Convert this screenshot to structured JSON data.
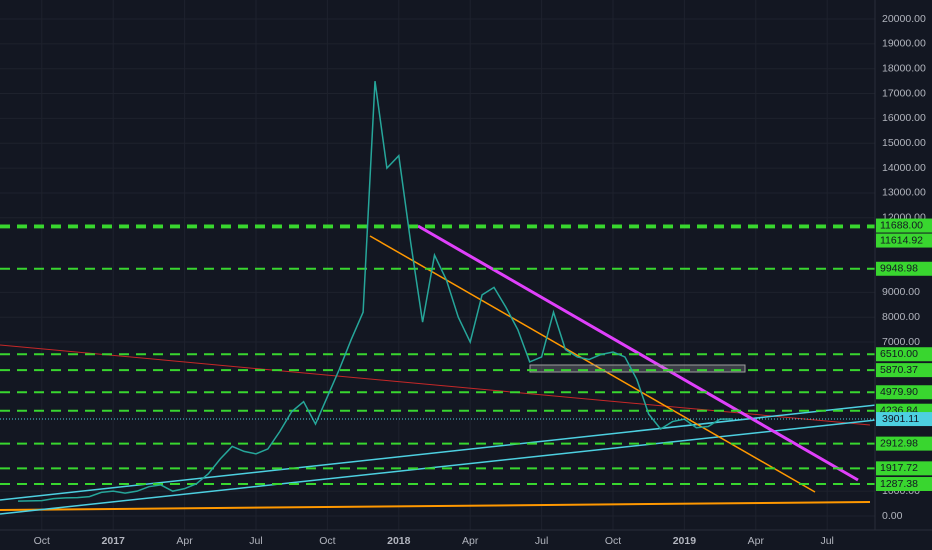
{
  "chart_data": {
    "type": "line",
    "categories": [
      null,
      null,
      "Oct",
      null,
      null,
      null,
      null,
      null,
      "2017",
      null,
      null,
      null,
      null,
      null,
      "Apr",
      null,
      null,
      null,
      null,
      null,
      "Jul",
      null,
      null,
      null,
      null,
      null,
      "Oct",
      null,
      null,
      null,
      null,
      null,
      "2018",
      null,
      null,
      null,
      null,
      null,
      "Apr",
      null,
      null,
      null,
      null,
      null,
      "Jul",
      null,
      null,
      null,
      null,
      null,
      "Oct",
      null,
      null,
      null,
      null,
      null,
      "2019",
      null,
      null,
      null,
      null,
      null,
      "Apr",
      null,
      null,
      null,
      null,
      null,
      "Jul",
      null
    ],
    "series": [
      {
        "color": "#26a69a",
        "values": [
          600,
          610,
          620,
          700,
          730,
          740,
          780,
          950,
          1000,
          920,
          1000,
          1180,
          1250,
          1000,
          1100,
          1300,
          1700,
          2300,
          2800,
          2600,
          2500,
          2700,
          3400,
          4200,
          4600,
          3700,
          4800,
          5900,
          7100,
          8200,
          17500,
          14000,
          14500,
          11000,
          7800,
          10500,
          9500,
          8000,
          7000,
          8900,
          9200,
          8400,
          7500,
          6200,
          6400,
          8200,
          6700,
          6400,
          6300,
          6500,
          6600,
          6400,
          5500,
          4100,
          3500,
          3800,
          3900,
          3550,
          3600,
          3900,
          3901.11,
          null,
          null,
          null,
          null,
          null,
          null,
          null,
          null,
          null
        ]
      }
    ],
    "ylim": [
      0,
      20000
    ],
    "yticks": [
      {
        "value": 0,
        "label": "0.00"
      },
      {
        "value": 1000,
        "label": "1000.00"
      },
      {
        "value": 7000,
        "label": "7000.00"
      },
      {
        "value": 8000,
        "label": "8000.00"
      },
      {
        "value": 9000,
        "label": "9000.00"
      },
      {
        "value": 12000,
        "label": "12000.00"
      },
      {
        "value": 13000,
        "label": "13000.00"
      },
      {
        "value": 14000,
        "label": "14000.00"
      },
      {
        "value": 15000,
        "label": "15000.00"
      },
      {
        "value": 16000,
        "label": "16000.00"
      },
      {
        "value": 17000,
        "label": "17000.00"
      },
      {
        "value": 18000,
        "label": "18000.00"
      },
      {
        "value": 19000,
        "label": "19000.00"
      },
      {
        "value": 20000,
        "label": "20000.00"
      }
    ],
    "levels": [
      {
        "value": 11688,
        "label": "11688.00"
      },
      {
        "value": 11614.92,
        "label": "11614.92"
      },
      {
        "value": 9948.98,
        "label": "9948.98"
      },
      {
        "value": 6510,
        "label": "6510.00"
      },
      {
        "value": 5870.37,
        "label": "5870.37"
      },
      {
        "value": 4979.9,
        "label": "4979.90"
      },
      {
        "value": 4236.84,
        "label": "4236.84"
      },
      {
        "value": 2912.98,
        "label": "2912.98"
      },
      {
        "value": 1917.72,
        "label": "1917.72"
      },
      {
        "value": 1287.38,
        "label": "1287.38"
      }
    ],
    "level_color": "#39d62f",
    "price_line": {
      "value": 3901.11,
      "label": "3901.11"
    },
    "grid": true
  }
}
